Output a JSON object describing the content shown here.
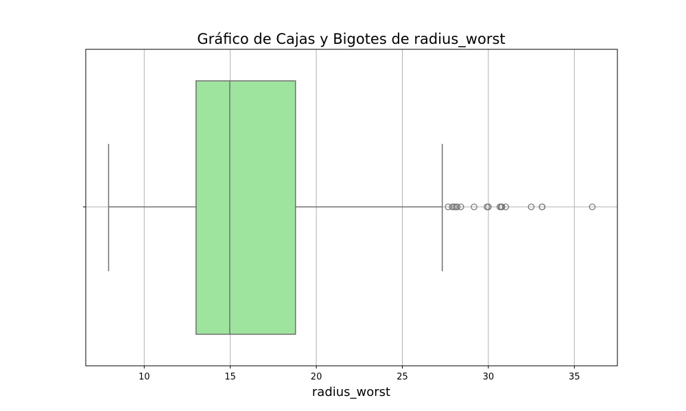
{
  "chart_data": {
    "type": "boxplot",
    "orientation": "horizontal",
    "title": "Gráfico de Cajas y Bigotes de radius_worst",
    "xlabel": "radius_worst",
    "ylabel": "",
    "xlim": [
      6.6,
      37.5
    ],
    "xticks": [
      10,
      15,
      20,
      25,
      30,
      35
    ],
    "grid": true,
    "box_color": "#9ee39e",
    "line_color": "#707070",
    "box": {
      "whisker_low": 7.93,
      "q1": 13.01,
      "median": 14.97,
      "q3": 18.79,
      "whisker_high": 27.32
    },
    "outliers": [
      27.66,
      27.9,
      28.01,
      28.11,
      28.19,
      28.4,
      29.17,
      29.92,
      30.0,
      30.67,
      30.75,
      30.79,
      31.01,
      32.49,
      33.12,
      33.13,
      36.04
    ]
  }
}
